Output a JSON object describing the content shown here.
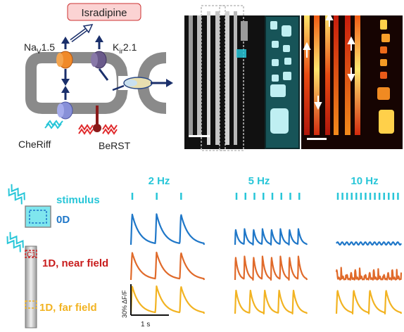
{
  "panel_a": {
    "drug_label": "Isradipine",
    "channel_nav": {
      "base": "Na",
      "sub": "V",
      "suffix": "1.5"
    },
    "channel_kir": {
      "base": "K",
      "sub": "ir",
      "suffix": "2.1"
    },
    "optogenetic_label": "CheRiff",
    "voltage_dye_label": "BeRST"
  },
  "panel_c": {
    "stimulus_label": "stimulus",
    "geometry_labels": {
      "zero_d": "0D",
      "c1": "C1",
      "near": "1D, near field",
      "far": "1D, far field"
    },
    "frequencies": [
      "2 Hz",
      "5 Hz",
      "10 Hz"
    ],
    "scale_bar": {
      "y": "30% ΔF/F",
      "x": "1 s"
    },
    "colors": {
      "stimulus": "#28c6d8",
      "zero_d": "#1f77c8",
      "near_field": "#e06a2a",
      "far_field": "#f2b322"
    }
  }
}
